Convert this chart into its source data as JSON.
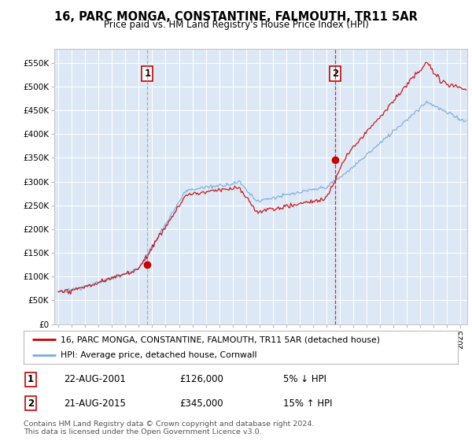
{
  "title": "16, PARC MONGA, CONSTANTINE, FALMOUTH, TR11 5AR",
  "subtitle": "Price paid vs. HM Land Registry's House Price Index (HPI)",
  "plot_bg_color": "#dce8f5",
  "fig_bg_color": "#ffffff",
  "red_color": "#cc0000",
  "blue_color": "#7aabdb",
  "sale1_dashed_color": "#999999",
  "sale2_dashed_color": "#cc0000",
  "ylim": [
    0,
    580000
  ],
  "yticks": [
    0,
    50000,
    100000,
    150000,
    200000,
    250000,
    300000,
    350000,
    400000,
    450000,
    500000,
    550000
  ],
  "ytick_labels": [
    "£0",
    "£50K",
    "£100K",
    "£150K",
    "£200K",
    "£250K",
    "£300K",
    "£350K",
    "£400K",
    "£450K",
    "£500K",
    "£550K"
  ],
  "xlim_left": 1994.7,
  "xlim_right": 2025.5,
  "sale1_year": 2001.65,
  "sale1_price": 126000,
  "sale2_year": 2015.65,
  "sale2_price": 345000,
  "legend_line1": "16, PARC MONGA, CONSTANTINE, FALMOUTH, TR11 5AR (detached house)",
  "legend_line2": "HPI: Average price, detached house, Cornwall",
  "table_row1": [
    "1",
    "22-AUG-2001",
    "£126,000",
    "5% ↓ HPI"
  ],
  "table_row2": [
    "2",
    "21-AUG-2015",
    "£345,000",
    "15% ↑ HPI"
  ],
  "footnote": "Contains HM Land Registry data © Crown copyright and database right 2024.\nThis data is licensed under the Open Government Licence v3.0."
}
